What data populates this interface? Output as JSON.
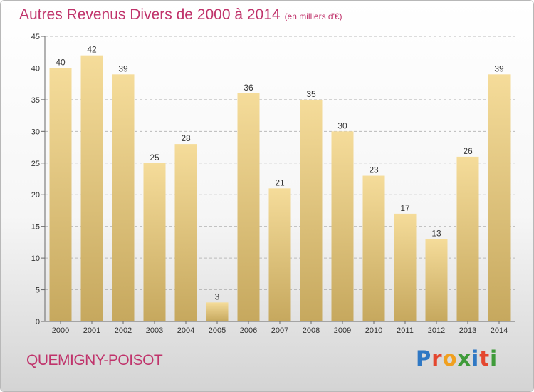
{
  "header": {
    "title": "Autres Revenus Divers de 2000 à 2014",
    "subtitle": "(en milliers d'€)"
  },
  "footer": {
    "location": "QUEMIGNY-POISOT",
    "brand": "Proxiti",
    "brand_letters": [
      {
        "ch": "P",
        "color": "#2f78c4"
      },
      {
        "ch": "r",
        "color": "#e4472f"
      },
      {
        "ch": "o",
        "color": "#f0a020"
      },
      {
        "ch": "x",
        "color": "#3f9b3a"
      },
      {
        "ch": "i",
        "color": "#2f78c4"
      },
      {
        "ch": "t",
        "color": "#e4472f"
      },
      {
        "ch": "i",
        "color": "#3f9b3a"
      }
    ]
  },
  "colors": {
    "title": "#c0336b",
    "bar_top": "#f5dc9a",
    "bar_bottom": "#c6a85e",
    "grid": "#bbbbbb"
  },
  "chart_data": {
    "type": "bar",
    "categories": [
      "2000",
      "2001",
      "2002",
      "2003",
      "2004",
      "2005",
      "2006",
      "2007",
      "2008",
      "2009",
      "2010",
      "2011",
      "2012",
      "2013",
      "2014"
    ],
    "values": [
      40,
      42,
      39,
      25,
      28,
      3,
      36,
      21,
      35,
      30,
      23,
      17,
      13,
      26,
      39
    ],
    "ylim": [
      0,
      45
    ],
    "yticks": [
      0,
      5,
      10,
      15,
      20,
      25,
      30,
      35,
      40,
      45
    ],
    "grid": "horizontal dashed",
    "legend": "none"
  }
}
